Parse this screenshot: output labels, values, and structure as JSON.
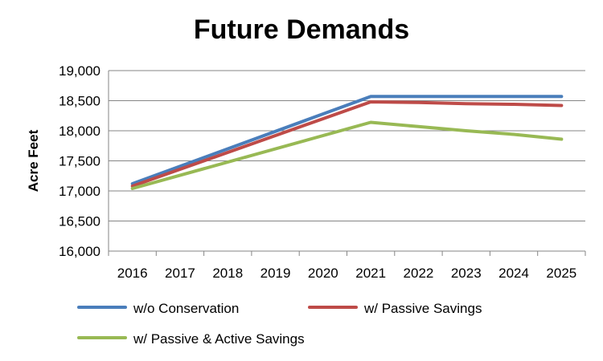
{
  "chart_data": {
    "type": "line",
    "title": "Future Demands",
    "xlabel": "",
    "ylabel": "Acre Feet",
    "x": [
      "2016",
      "2017",
      "2018",
      "2019",
      "2020",
      "2021",
      "2022",
      "2023",
      "2024",
      "2025"
    ],
    "ylim": [
      16000,
      19000
    ],
    "yticks": [
      "16,000",
      "16,500",
      "17,000",
      "17,500",
      "18,000",
      "18,500",
      "19,000"
    ],
    "grid": true,
    "legend": "bottom",
    "series": [
      {
        "name": "w/o Conservation",
        "color": "#4A7EBB",
        "values": [
          17120,
          null,
          null,
          null,
          null,
          18570,
          18570,
          18570,
          18570,
          18570
        ]
      },
      {
        "name": "w/ Passive Savings",
        "color": "#BE4B48",
        "values": [
          17080,
          null,
          null,
          null,
          null,
          18480,
          18470,
          18450,
          18440,
          18420
        ]
      },
      {
        "name": "w/ Passive & Active Savings",
        "color": "#98B954",
        "values": [
          17040,
          null,
          null,
          null,
          null,
          18140,
          18070,
          18000,
          17940,
          17860
        ]
      }
    ]
  }
}
